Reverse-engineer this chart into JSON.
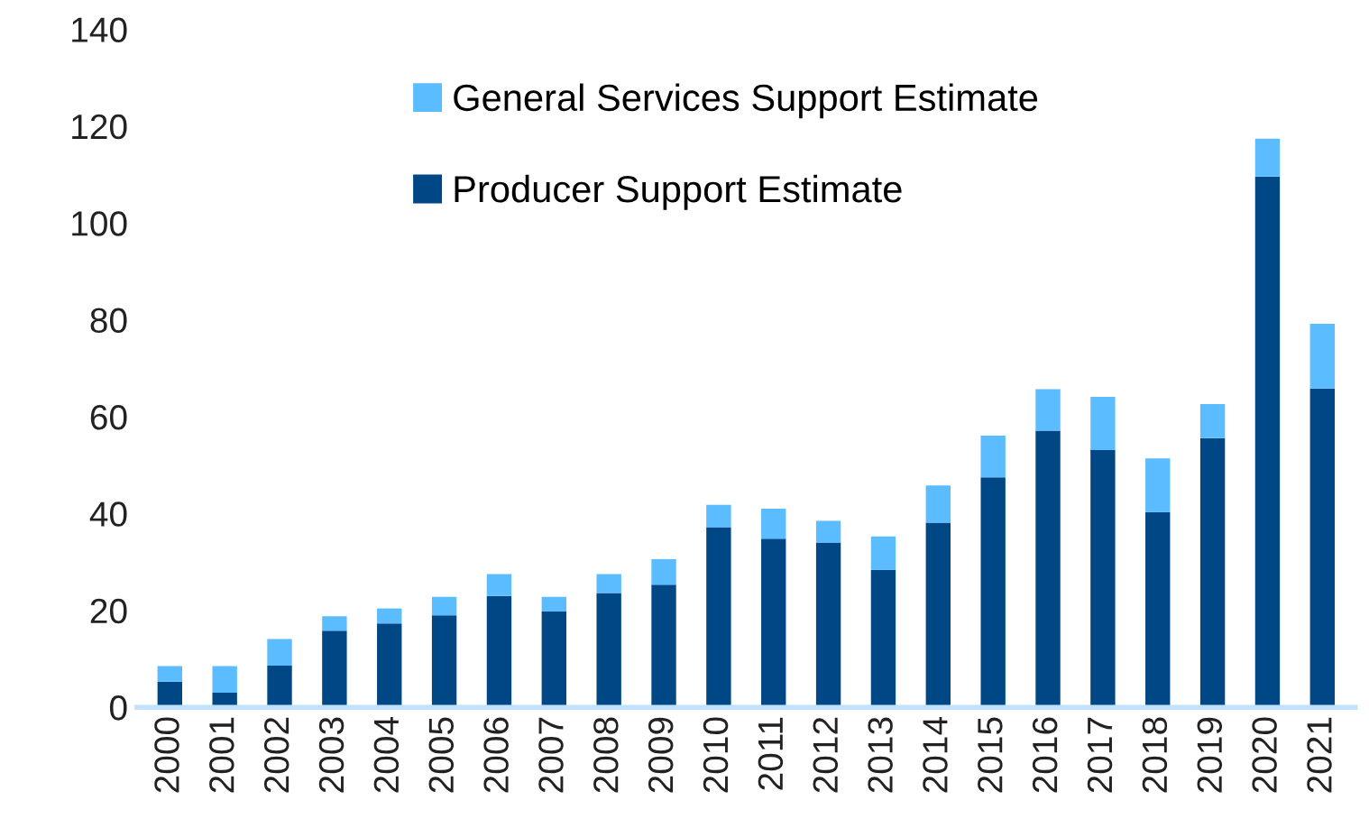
{
  "chart_data": {
    "type": "bar",
    "stacked": true,
    "categories": [
      "2000",
      "2001",
      "2002",
      "2003",
      "2004",
      "2005",
      "2006",
      "2007",
      "2008",
      "2009",
      "2010",
      "2011",
      "2012",
      "2013",
      "2014",
      "2015",
      "2016",
      "2017",
      "2018",
      "2019",
      "2020",
      "2021"
    ],
    "series": [
      {
        "name": "Producer Support Estimate",
        "color": "#004785",
        "values": [
          5.3,
          3.0,
          8.6,
          15.8,
          17.3,
          19.0,
          23.0,
          19.8,
          23.6,
          25.3,
          37.2,
          34.8,
          34.0,
          28.4,
          38.1,
          47.5,
          57.1,
          53.1,
          40.3,
          55.6,
          109.6,
          65.8
        ]
      },
      {
        "name": "General Services Support Estimate",
        "color": "#5bbcff",
        "values": [
          3.2,
          5.5,
          5.5,
          3.0,
          3.1,
          3.8,
          4.5,
          3.0,
          3.9,
          5.3,
          4.6,
          6.2,
          4.5,
          6.9,
          7.7,
          8.6,
          8.6,
          11.0,
          11.1,
          7.0,
          7.8,
          13.4
        ]
      }
    ],
    "ylim": [
      0,
      140
    ],
    "yticks": [
      0,
      20,
      40,
      60,
      80,
      100,
      120,
      140
    ],
    "grid": false,
    "legend": "top left"
  }
}
